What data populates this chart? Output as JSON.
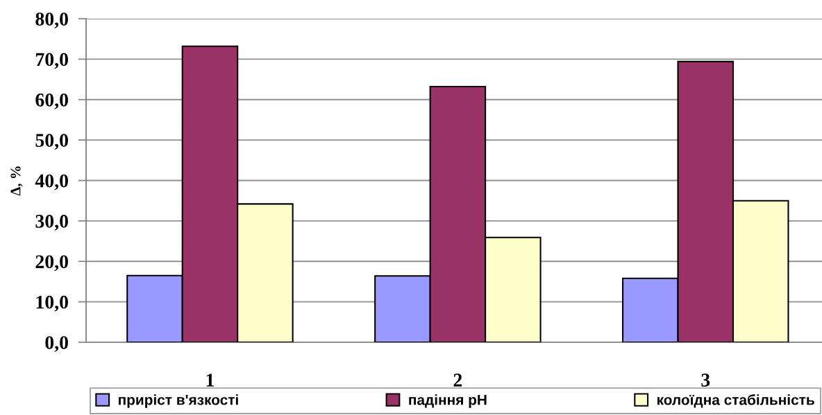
{
  "chart_data": {
    "type": "bar",
    "ylabel": "Δ, %",
    "categories": [
      "1",
      "2",
      "3"
    ],
    "series": [
      {
        "name": "приріст в'язкості",
        "color": "#9999ff",
        "values": [
          16.5,
          16.4,
          15.8
        ]
      },
      {
        "name": "падіння рН",
        "color": "#993366",
        "values": [
          73.2,
          63.2,
          69.4
        ]
      },
      {
        "name": "колоїдна стабільність",
        "color": "#ffffcc",
        "values": [
          34.2,
          25.9,
          35.0
        ]
      }
    ],
    "ylim": [
      0,
      80
    ],
    "yticks": [
      {
        "value": 0,
        "label": "0,0"
      },
      {
        "value": 10,
        "label": "10,0"
      },
      {
        "value": 20,
        "label": "20,0"
      },
      {
        "value": 30,
        "label": "30,0"
      },
      {
        "value": 40,
        "label": "40,0"
      },
      {
        "value": 50,
        "label": "50,0"
      },
      {
        "value": 60,
        "label": "60,0"
      },
      {
        "value": 70,
        "label": "70,0"
      },
      {
        "value": 80,
        "label": "80,0"
      }
    ],
    "grid": "y",
    "legend": "bottom"
  }
}
